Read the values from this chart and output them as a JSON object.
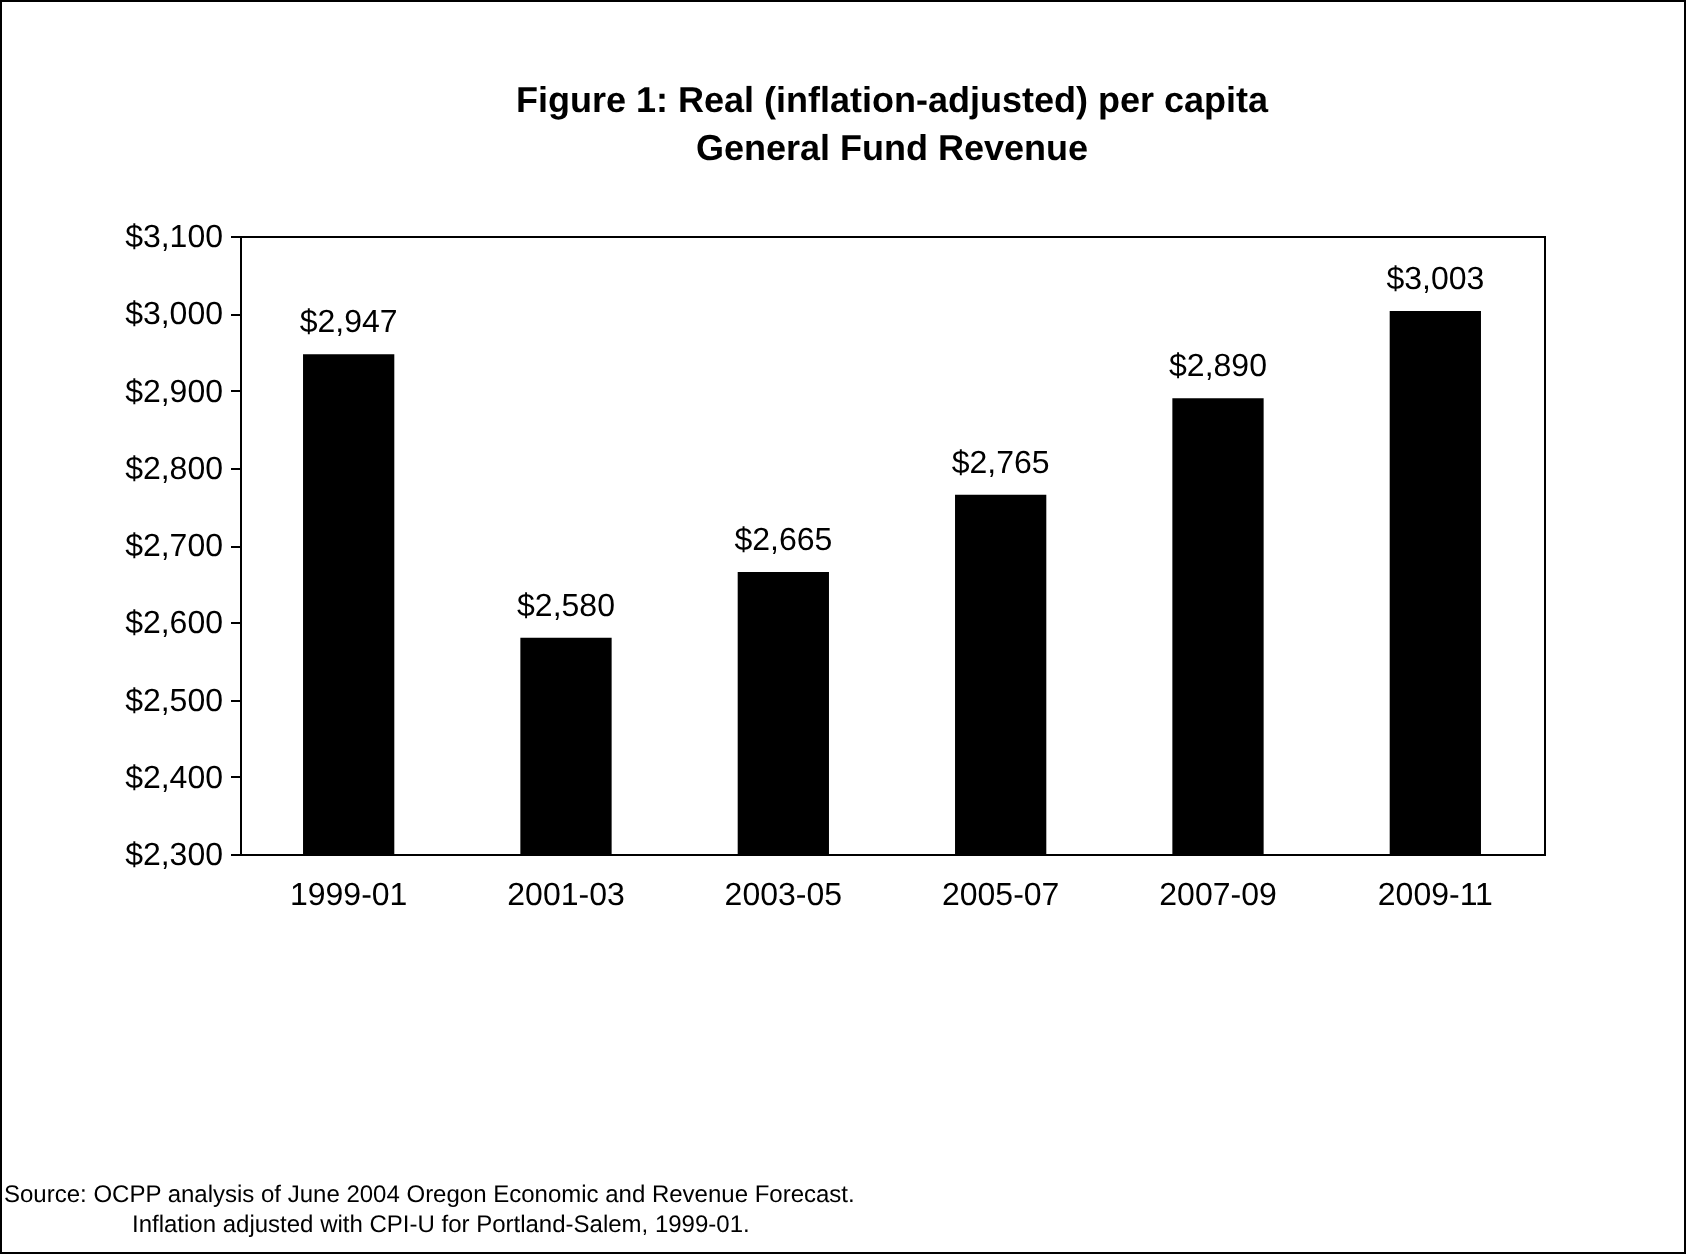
{
  "chart_data": {
    "type": "bar",
    "title": "Figure 1: Real (inflation-adjusted) per capita\nGeneral Fund Revenue",
    "categories": [
      "1999-01",
      "2001-03",
      "2003-05",
      "2005-07",
      "2007-09",
      "2009-11"
    ],
    "values": [
      2947,
      2580,
      2665,
      2765,
      2890,
      3003
    ],
    "value_labels": [
      "$2,947",
      "$2,580",
      "$2,665",
      "$2,765",
      "$2,890",
      "$3,003"
    ],
    "color": "#000000",
    "ylim": [
      2300,
      3100
    ],
    "yticks": [
      {
        "value": 2300,
        "label": "$2,300"
      },
      {
        "value": 2400,
        "label": "$2,400"
      },
      {
        "value": 2500,
        "label": "$2,500"
      },
      {
        "value": 2600,
        "label": "$2,600"
      },
      {
        "value": 2700,
        "label": "$2,700"
      },
      {
        "value": 2800,
        "label": "$2,800"
      },
      {
        "value": 2900,
        "label": "$2,900"
      },
      {
        "value": 3000,
        "label": "$3,000"
      },
      {
        "value": 3100,
        "label": "$3,100"
      }
    ],
    "grid": false,
    "annotations": [
      "Source: OCPP analysis of June 2004 Oregon Economic and Revenue Forecast.",
      "Inflation adjusted with CPI-U for Portland-Salem, 1999-01."
    ]
  }
}
